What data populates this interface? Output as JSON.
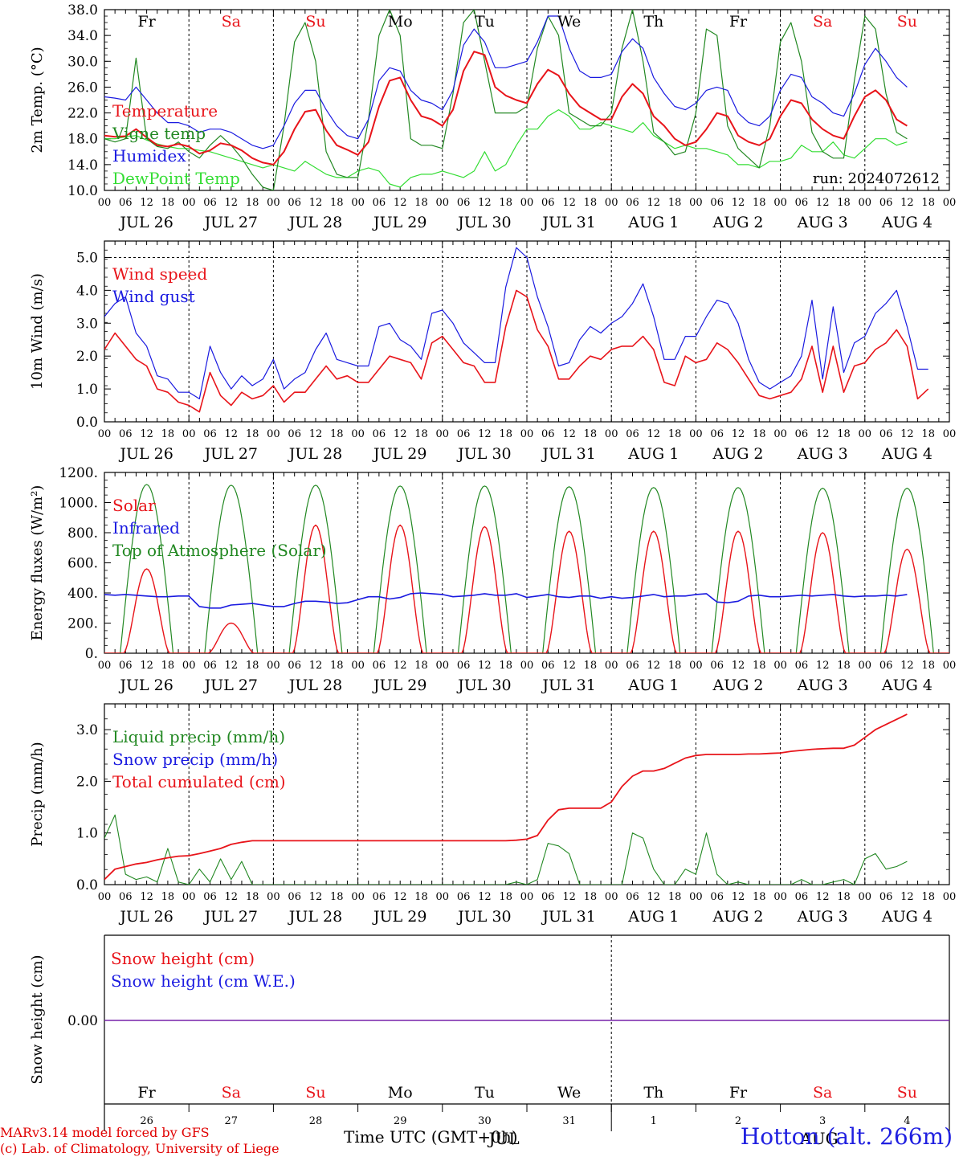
{
  "colors": {
    "red": "#e8141a",
    "green": "#228822",
    "blue": "#1a1ae0",
    "lightgreen": "#33dd33",
    "purple": "#7722aa",
    "weekday": "#000000",
    "weekend": "#e8141a"
  },
  "days": {
    "weekdays": [
      "Fr",
      "Sa",
      "Su",
      "Mo",
      "Tu",
      "We",
      "Th",
      "Fr",
      "Sa",
      "Su"
    ],
    "weekend_flags": [
      false,
      true,
      true,
      false,
      false,
      false,
      false,
      false,
      true,
      true
    ],
    "date_labels": [
      "JUL 26",
      "JUL 27",
      "JUL 28",
      "JUL 29",
      "JUL 30",
      "JUL 31",
      "AUG  1",
      "AUG  2",
      "AUG  3",
      "AUG  4"
    ],
    "day_numbers": [
      "26",
      "27",
      "28",
      "29",
      "30",
      "31",
      "1",
      "2",
      "3",
      "4"
    ],
    "hour_ticks": [
      "00",
      "06",
      "12",
      "18"
    ],
    "last_hour_tick": "00"
  },
  "bottom_month_labels": {
    "left": "JUL",
    "right": "AUG"
  },
  "x_axis_title": "Time UTC (GMT+0h)",
  "footer": {
    "line1": "MARv3.14 model forced by GFS",
    "line2": "(c) Lab. of Climatology, University of Liege"
  },
  "station": "Hotton (alt. 266m)",
  "run_label": "run: 2024072612",
  "chart_data": [
    {
      "type": "line",
      "ylabel": "2m Temp. (°C)",
      "ylim": [
        10,
        38
      ],
      "yticks": [
        "10.0",
        "14.0",
        "18.0",
        "22.0",
        "26.0",
        "30.0",
        "34.0",
        "38.0"
      ],
      "x_unit": "hours since JUL 26 00 UTC (3-hourly)",
      "legend": [
        "Temperature",
        "Vigne temp",
        "Humidex",
        "DewPoint Temp"
      ],
      "series": [
        {
          "name": "Temperature",
          "color": "red",
          "values": [
            18.5,
            18.3,
            18.4,
            19.5,
            18.2,
            17.0,
            16.8,
            17.2,
            16.8,
            15.7,
            16.2,
            17.3,
            17.0,
            16.2,
            15.0,
            14.3,
            14.0,
            16.0,
            19.5,
            22.2,
            22.5,
            19.3,
            17.0,
            16.3,
            15.5,
            17.5,
            23.0,
            27.0,
            27.5,
            24.0,
            21.5,
            21.0,
            20.0,
            22.5,
            28.5,
            31.5,
            31.0,
            26.0,
            24.7,
            24.0,
            23.5,
            26.5,
            28.7,
            27.8,
            25.0,
            23.0,
            22.0,
            21.0,
            21.0,
            24.5,
            26.5,
            25.0,
            21.5,
            20.0,
            18.0,
            17.0,
            17.5,
            19.5,
            22.0,
            21.5,
            18.5,
            17.5,
            17.0,
            18.0,
            21.5,
            24.0,
            23.5,
            21.0,
            19.5,
            18.5,
            18.0,
            21.5,
            24.5,
            25.5,
            24.0,
            21.0,
            20.0
          ]
        },
        {
          "name": "Vigne temp",
          "color": "green",
          "values": [
            18.0,
            17.5,
            18.0,
            30.5,
            18.0,
            16.8,
            16.5,
            17.5,
            16.0,
            15.0,
            17.0,
            18.5,
            17.0,
            15.0,
            12.5,
            10.5,
            10.0,
            20.0,
            33.0,
            36.0,
            30.0,
            16.0,
            12.5,
            12.0,
            12.0,
            21.0,
            34.0,
            38.0,
            34.0,
            18.0,
            17.0,
            17.0,
            16.5,
            25.0,
            36.0,
            38.0,
            30.0,
            22.0,
            22.0,
            22.0,
            23.0,
            32.0,
            37.0,
            34.0,
            22.0,
            21.0,
            20.0,
            20.0,
            22.0,
            32.0,
            38.0,
            30.0,
            19.0,
            17.5,
            15.5,
            16.0,
            22.0,
            35.0,
            34.0,
            20.0,
            16.5,
            15.0,
            13.5,
            20.0,
            33.0,
            36.0,
            30.0,
            19.0,
            16.0,
            15.0,
            15.0,
            27.0,
            37.0,
            35.0,
            25.0,
            19.0,
            18.0
          ]
        },
        {
          "name": "Humidex",
          "color": "blue",
          "values": [
            24.5,
            24.3,
            24.0,
            26.0,
            24.0,
            22.0,
            20.5,
            20.5,
            20.0,
            19.0,
            19.5,
            19.5,
            19.0,
            18.0,
            17.0,
            16.5,
            17.0,
            20.0,
            23.5,
            25.5,
            25.5,
            22.5,
            20.0,
            18.5,
            18.0,
            21.0,
            27.0,
            29.0,
            28.5,
            25.5,
            24.0,
            23.5,
            22.5,
            25.5,
            32.5,
            35.0,
            33.0,
            29.0,
            29.0,
            29.5,
            30.0,
            33.0,
            37.0,
            37.0,
            32.0,
            28.5,
            27.5,
            27.5,
            28.0,
            31.5,
            33.5,
            32.0,
            27.5,
            25.0,
            23.0,
            22.5,
            23.5,
            25.5,
            26.0,
            25.5,
            22.0,
            20.5,
            20.0,
            21.5,
            25.5,
            28.0,
            27.5,
            24.5,
            23.5,
            22.0,
            21.5,
            25.0,
            29.5,
            32.0,
            30.0,
            27.5,
            26.0
          ]
        },
        {
          "name": "DewPoint Temp",
          "color": "lightgreen",
          "values": [
            18.0,
            18.0,
            18.3,
            18.5,
            17.8,
            17.2,
            16.8,
            16.5,
            16.5,
            16.2,
            16.0,
            15.5,
            15.0,
            14.5,
            14.0,
            13.5,
            14.0,
            13.5,
            13.0,
            14.5,
            13.5,
            12.5,
            12.0,
            12.0,
            13.0,
            13.5,
            13.0,
            11.0,
            10.5,
            12.0,
            12.5,
            12.5,
            13.0,
            12.5,
            12.0,
            13.0,
            16.0,
            13.0,
            14.0,
            17.0,
            19.5,
            19.5,
            21.5,
            22.5,
            21.5,
            19.5,
            19.5,
            20.5,
            20.0,
            19.5,
            19.0,
            20.5,
            18.5,
            17.5,
            16.5,
            17.0,
            16.5,
            16.5,
            16.0,
            15.5,
            14.0,
            14.0,
            13.5,
            14.5,
            14.5,
            15.0,
            17.0,
            16.0,
            16.0,
            17.5,
            15.5,
            15.0,
            16.5,
            18.0,
            18.0,
            17.0,
            17.5
          ]
        }
      ]
    },
    {
      "type": "line",
      "ylabel": "10m Wind (m/s)",
      "ylim": [
        0,
        5.5
      ],
      "yticks": [
        "0.0",
        "1.0",
        "2.0",
        "3.0",
        "4.0",
        "5.0"
      ],
      "dashed_reference": 5.0,
      "x_unit": "hours since JUL 26 00 UTC (3-hourly)",
      "legend": [
        "Wind speed",
        "Wind gust"
      ],
      "series": [
        {
          "name": "Wind speed",
          "color": "red",
          "values": [
            2.2,
            2.7,
            2.3,
            1.9,
            1.7,
            1.0,
            0.9,
            0.6,
            0.5,
            0.3,
            1.5,
            0.8,
            0.5,
            0.9,
            0.7,
            0.8,
            1.1,
            0.6,
            0.9,
            0.9,
            1.3,
            1.7,
            1.3,
            1.4,
            1.2,
            1.2,
            1.6,
            2.0,
            1.9,
            1.8,
            1.3,
            2.4,
            2.6,
            2.2,
            1.8,
            1.7,
            1.2,
            1.2,
            2.9,
            4.0,
            3.8,
            2.8,
            2.3,
            1.3,
            1.3,
            1.7,
            2.0,
            1.9,
            2.2,
            2.3,
            2.3,
            2.6,
            2.2,
            1.2,
            1.1,
            2.0,
            1.8,
            1.9,
            2.4,
            2.2,
            1.8,
            1.3,
            0.8,
            0.7,
            0.8,
            0.9,
            1.3,
            2.3,
            0.9,
            2.3,
            0.9,
            1.7,
            1.8,
            2.2,
            2.4,
            2.8,
            2.3,
            0.7,
            1.0
          ]
        },
        {
          "name": "Wind gust",
          "color": "blue",
          "values": [
            3.2,
            3.6,
            3.8,
            2.7,
            2.3,
            1.4,
            1.3,
            0.9,
            0.9,
            0.7,
            2.3,
            1.5,
            1.0,
            1.4,
            1.1,
            1.3,
            1.9,
            1.0,
            1.3,
            1.5,
            2.2,
            2.7,
            1.9,
            1.8,
            1.7,
            1.7,
            2.9,
            3.0,
            2.5,
            2.3,
            1.9,
            3.3,
            3.4,
            3.0,
            2.4,
            2.1,
            1.8,
            1.8,
            4.1,
            5.3,
            5.0,
            3.8,
            2.9,
            1.7,
            1.8,
            2.5,
            2.9,
            2.7,
            3.0,
            3.2,
            3.6,
            4.2,
            3.2,
            1.9,
            1.9,
            2.6,
            2.6,
            3.2,
            3.7,
            3.6,
            3.0,
            1.9,
            1.2,
            1.0,
            1.2,
            1.4,
            2.0,
            3.7,
            1.3,
            3.5,
            1.5,
            2.4,
            2.6,
            3.3,
            3.6,
            4.0,
            2.9,
            1.6,
            1.6
          ]
        }
      ]
    },
    {
      "type": "line",
      "ylabel": "Energy fluxes (W/m²)",
      "ylim": [
        0,
        1200
      ],
      "yticks": [
        "0.",
        "200.",
        "400.",
        "600.",
        "800.",
        "1000.",
        "1200."
      ],
      "x_unit": "hours since JUL 26 00 UTC (3-hourly)",
      "legend": [
        "Solar",
        "Infrared",
        "Top of Atmosphere (Solar)"
      ],
      "toa_daily_peak": [
        1120,
        1115,
        1115,
        1110,
        1110,
        1105,
        1100,
        1100,
        1095,
        1095
      ],
      "solar_daily_peak": [
        560,
        200,
        850,
        850,
        840,
        810,
        810,
        810,
        800,
        690
      ],
      "infrared_values": [
        390,
        385,
        390,
        385,
        380,
        375,
        375,
        380,
        380,
        310,
        300,
        300,
        320,
        325,
        330,
        320,
        310,
        310,
        330,
        345,
        345,
        340,
        330,
        335,
        355,
        375,
        375,
        360,
        370,
        395,
        400,
        395,
        390,
        375,
        380,
        385,
        395,
        385,
        385,
        395,
        370,
        380,
        390,
        375,
        370,
        380,
        380,
        365,
        375,
        365,
        370,
        380,
        390,
        375,
        380,
        380,
        390,
        395,
        340,
        335,
        345,
        380,
        385,
        375,
        375,
        380,
        385,
        380,
        385,
        390,
        380,
        375,
        380,
        380,
        385,
        380,
        390
      ]
    },
    {
      "type": "line",
      "ylabel": "Precip (mm/h)",
      "ylim": [
        0,
        3.5
      ],
      "yticks": [
        "0.0",
        "1.0",
        "2.0",
        "3.0"
      ],
      "x_unit": "hours since JUL 26 00 UTC (3-hourly)",
      "legend": [
        "Liquid precip (mm/h)",
        "Snow precip (mm/h)",
        "Total cumulated (cm)"
      ],
      "series": [
        {
          "name": "Liquid precip (mm/h)",
          "color": "green",
          "values": [
            0.9,
            1.35,
            0.2,
            0.1,
            0.15,
            0.05,
            0.7,
            0.05,
            0.0,
            0.3,
            0.05,
            0.5,
            0.1,
            0.45,
            0.0,
            0.0,
            0.0,
            0.0,
            0.0,
            0.0,
            0.0,
            0.0,
            0.0,
            0.0,
            0.0,
            0.0,
            0.0,
            0.0,
            0.0,
            0.0,
            0.0,
            0.0,
            0.0,
            0.0,
            0.0,
            0.0,
            0.0,
            0.0,
            0.0,
            0.05,
            0.0,
            0.1,
            0.8,
            0.75,
            0.6,
            0.0,
            0.0,
            0.0,
            0.0,
            0.0,
            1.0,
            0.9,
            0.3,
            0.0,
            0.0,
            0.3,
            0.2,
            1.0,
            0.2,
            0.0,
            0.05,
            0.0,
            0.0,
            0.0,
            0.0,
            0.0,
            0.1,
            0.0,
            0.0,
            0.05,
            0.1,
            0.0,
            0.5,
            0.6,
            0.3,
            0.35,
            0.45
          ]
        },
        {
          "name": "Total cumulated (cm)",
          "color": "red",
          "values": [
            0.1,
            0.3,
            0.35,
            0.4,
            0.43,
            0.48,
            0.52,
            0.55,
            0.56,
            0.6,
            0.65,
            0.7,
            0.78,
            0.82,
            0.85,
            0.85,
            0.85,
            0.85,
            0.85,
            0.85,
            0.85,
            0.85,
            0.85,
            0.85,
            0.85,
            0.85,
            0.85,
            0.85,
            0.85,
            0.85,
            0.85,
            0.85,
            0.85,
            0.85,
            0.85,
            0.85,
            0.85,
            0.85,
            0.85,
            0.86,
            0.88,
            0.95,
            1.25,
            1.45,
            1.48,
            1.48,
            1.48,
            1.48,
            1.6,
            1.9,
            2.1,
            2.2,
            2.2,
            2.25,
            2.35,
            2.45,
            2.5,
            2.52,
            2.52,
            2.52,
            2.52,
            2.53,
            2.53,
            2.54,
            2.55,
            2.58,
            2.6,
            2.62,
            2.63,
            2.64,
            2.64,
            2.7,
            2.85,
            3.0,
            3.1,
            3.2,
            3.3
          ]
        }
      ]
    },
    {
      "type": "line",
      "ylabel": "Snow height (cm)",
      "yticks": [
        "0.00"
      ],
      "legend": [
        "Snow height (cm)",
        "Snow height (cm W.E.)"
      ],
      "series": [
        {
          "name": "Snow height (cm)",
          "color": "red",
          "values": [
            0.0,
            0.0
          ]
        },
        {
          "name": "Snow height (cm W.E.)",
          "color": "blue",
          "values": [
            0.0,
            0.0
          ]
        }
      ]
    }
  ]
}
